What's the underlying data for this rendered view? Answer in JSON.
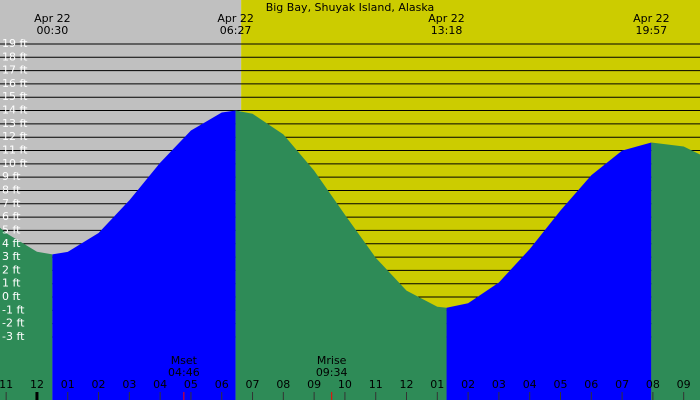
{
  "chart_data": {
    "type": "tide",
    "title": "Big Bay, Shuyak Island, Alaska",
    "x": [
      -1.2,
      -1,
      0,
      0.5,
      1,
      2,
      3,
      4,
      5,
      6,
      6.45,
      7,
      8,
      9,
      10,
      11,
      12,
      13,
      13.3,
      14,
      15,
      16,
      17,
      18,
      19,
      19.95,
      21,
      21.53
    ],
    "values": [
      5.2,
      4.8,
      3.4,
      3.2,
      3.39,
      4.81,
      7.26,
      10.08,
      12.5,
      13.85,
      14.0,
      13.76,
      12.21,
      9.49,
      6.18,
      2.95,
      0.48,
      -0.73,
      -0.8,
      -0.47,
      1.09,
      3.6,
      6.5,
      9.14,
      10.99,
      11.6,
      11.3,
      10.7
    ],
    "colors": {
      "rising": "#0000ff",
      "falling": "#2e8b57",
      "grid": "#000000"
    },
    "shading": [
      {
        "from": -1.2,
        "to": 6.63,
        "color": "#c0c0c0"
      },
      {
        "from": 6.63,
        "to": 21.53,
        "color": "#cccc00"
      }
    ],
    "xlim": [
      -1.2,
      21.53
    ],
    "ylim": [
      -7.73,
      22.3
    ],
    "grid": true,
    "yticks": [
      {
        "value": 19,
        "label": "19 ft"
      },
      {
        "value": 18,
        "label": "18 ft"
      },
      {
        "value": 17,
        "label": "17 ft"
      },
      {
        "value": 16,
        "label": "16 ft"
      },
      {
        "value": 15,
        "label": "15 ft"
      },
      {
        "value": 14,
        "label": "14 ft"
      },
      {
        "value": 13,
        "label": "13 ft"
      },
      {
        "value": 12,
        "label": "12 ft"
      },
      {
        "value": 11,
        "label": "11 ft"
      },
      {
        "value": 10,
        "label": "10 ft"
      },
      {
        "value": 9,
        "label": "9 ft"
      },
      {
        "value": 8,
        "label": "8 ft"
      },
      {
        "value": 7,
        "label": "7 ft"
      },
      {
        "value": 6,
        "label": "6 ft"
      },
      {
        "value": 5,
        "label": "5 ft"
      },
      {
        "value": 4,
        "label": "4 ft"
      },
      {
        "value": 3,
        "label": "3 ft"
      },
      {
        "value": 2,
        "label": "2 ft"
      },
      {
        "value": 1,
        "label": "1 ft"
      },
      {
        "value": 0,
        "label": "0 ft"
      },
      {
        "value": -1,
        "label": "-1 ft"
      },
      {
        "value": -2,
        "label": "-2 ft"
      },
      {
        "value": -3,
        "label": "-3 ft"
      }
    ],
    "xticks": [
      {
        "value": -1,
        "label": "11"
      },
      {
        "value": 0,
        "label": "12"
      },
      {
        "value": 1,
        "label": "01"
      },
      {
        "value": 2,
        "label": "02"
      },
      {
        "value": 3,
        "label": "03"
      },
      {
        "value": 4,
        "label": "04"
      },
      {
        "value": 5,
        "label": "05"
      },
      {
        "value": 6,
        "label": "06"
      },
      {
        "value": 7,
        "label": "07"
      },
      {
        "value": 8,
        "label": "08"
      },
      {
        "value": 9,
        "label": "09"
      },
      {
        "value": 10,
        "label": "10"
      },
      {
        "value": 11,
        "label": "11"
      },
      {
        "value": 12,
        "label": "12"
      },
      {
        "value": 13,
        "label": "01"
      },
      {
        "value": 14,
        "label": "02"
      },
      {
        "value": 15,
        "label": "03"
      },
      {
        "value": 16,
        "label": "04"
      },
      {
        "value": 17,
        "label": "05"
      },
      {
        "value": 18,
        "label": "06"
      },
      {
        "value": 19,
        "label": "07"
      },
      {
        "value": 20,
        "label": "08"
      },
      {
        "value": 21,
        "label": "09"
      }
    ],
    "tide_events": [
      {
        "date": "Apr 22",
        "time": "00:30",
        "x": 0.5
      },
      {
        "date": "Apr 22",
        "time": "06:27",
        "x": 6.45
      },
      {
        "date": "Apr 22",
        "time": "13:18",
        "x": 13.3
      },
      {
        "date": "Apr 22",
        "time": "19:57",
        "x": 19.95
      }
    ],
    "moon_events": [
      {
        "name": "Mset",
        "time": "04:46",
        "x": 4.77
      },
      {
        "name": "Mrise",
        "time": "09:34",
        "x": 9.57
      }
    ]
  }
}
